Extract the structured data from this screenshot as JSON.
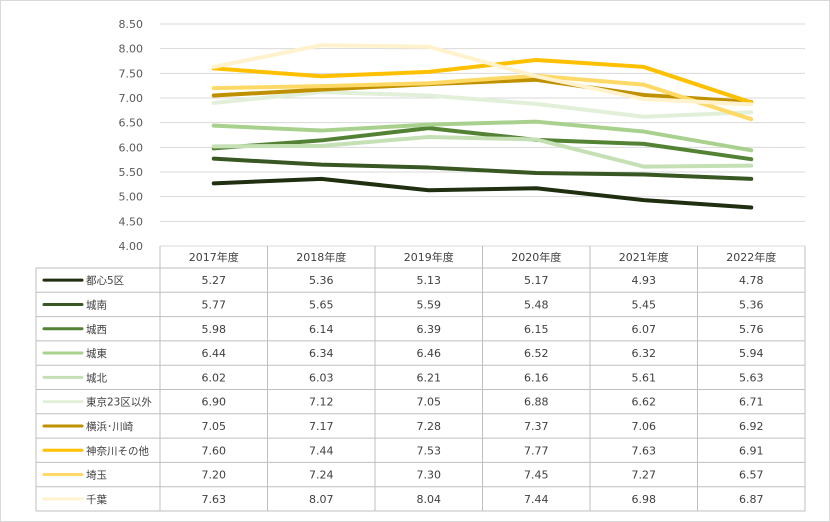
{
  "chart_data": {
    "type": "line",
    "categories": [
      "2017年度",
      "2018年度",
      "2019年度",
      "2020年度",
      "2021年度",
      "2022年度"
    ],
    "ylim": [
      4.0,
      8.5
    ],
    "yticks": [
      "4.00",
      "4.50",
      "5.00",
      "5.50",
      "6.00",
      "6.50",
      "7.00",
      "7.50",
      "8.00",
      "8.50"
    ],
    "grid": true,
    "series": [
      {
        "name": "都心5区",
        "color": "#1f2f10",
        "values": [
          5.27,
          5.36,
          5.13,
          5.17,
          4.93,
          4.78
        ],
        "display": [
          "5.27",
          "5.36",
          "5.13",
          "5.17",
          "4.93",
          "4.78"
        ]
      },
      {
        "name": "城南",
        "color": "#385723",
        "values": [
          5.77,
          5.65,
          5.59,
          5.48,
          5.45,
          5.36
        ],
        "display": [
          "5.77",
          "5.65",
          "5.59",
          "5.48",
          "5.45",
          "5.36"
        ]
      },
      {
        "name": "城西",
        "color": "#548235",
        "values": [
          5.98,
          6.14,
          6.39,
          6.15,
          6.07,
          5.76
        ],
        "display": [
          "5.98",
          "6.14",
          "6.39",
          "6.15",
          "6.07",
          "5.76"
        ]
      },
      {
        "name": "城東",
        "color": "#a9d18e",
        "values": [
          6.44,
          6.34,
          6.46,
          6.52,
          6.32,
          5.94
        ],
        "display": [
          "6.44",
          "6.34",
          "6.46",
          "6.52",
          "6.32",
          "5.94"
        ]
      },
      {
        "name": "城北",
        "color": "#c5e0b4",
        "values": [
          6.02,
          6.03,
          6.21,
          6.16,
          5.61,
          5.63
        ],
        "display": [
          "6.02",
          "6.03",
          "6.21",
          "6.16",
          "5.61",
          "5.63"
        ]
      },
      {
        "name": "東京23区以外",
        "color": "#e2efd9",
        "values": [
          6.9,
          7.12,
          7.05,
          6.88,
          6.62,
          6.71
        ],
        "display": [
          "6.90",
          "7.12",
          "7.05",
          "6.88",
          "6.62",
          "6.71"
        ]
      },
      {
        "name": "横浜･川崎",
        "color": "#bf9000",
        "values": [
          7.05,
          7.17,
          7.28,
          7.37,
          7.06,
          6.92
        ],
        "display": [
          "7.05",
          "7.17",
          "7.28",
          "7.37",
          "7.06",
          "6.92"
        ]
      },
      {
        "name": "神奈川その他",
        "color": "#ffc000",
        "values": [
          7.6,
          7.44,
          7.53,
          7.77,
          7.63,
          6.91
        ],
        "display": [
          "7.60",
          "7.44",
          "7.53",
          "7.77",
          "7.63",
          "6.91"
        ]
      },
      {
        "name": "埼玉",
        "color": "#ffd966",
        "values": [
          7.2,
          7.24,
          7.3,
          7.45,
          7.27,
          6.57
        ],
        "display": [
          "7.20",
          "7.24",
          "7.30",
          "7.45",
          "7.27",
          "6.57"
        ]
      },
      {
        "name": "千葉",
        "color": "#fff2cc",
        "values": [
          7.63,
          8.07,
          8.04,
          7.44,
          6.98,
          6.87
        ],
        "display": [
          "7.63",
          "8.07",
          "8.04",
          "7.44",
          "6.98",
          "6.87"
        ]
      }
    ]
  }
}
